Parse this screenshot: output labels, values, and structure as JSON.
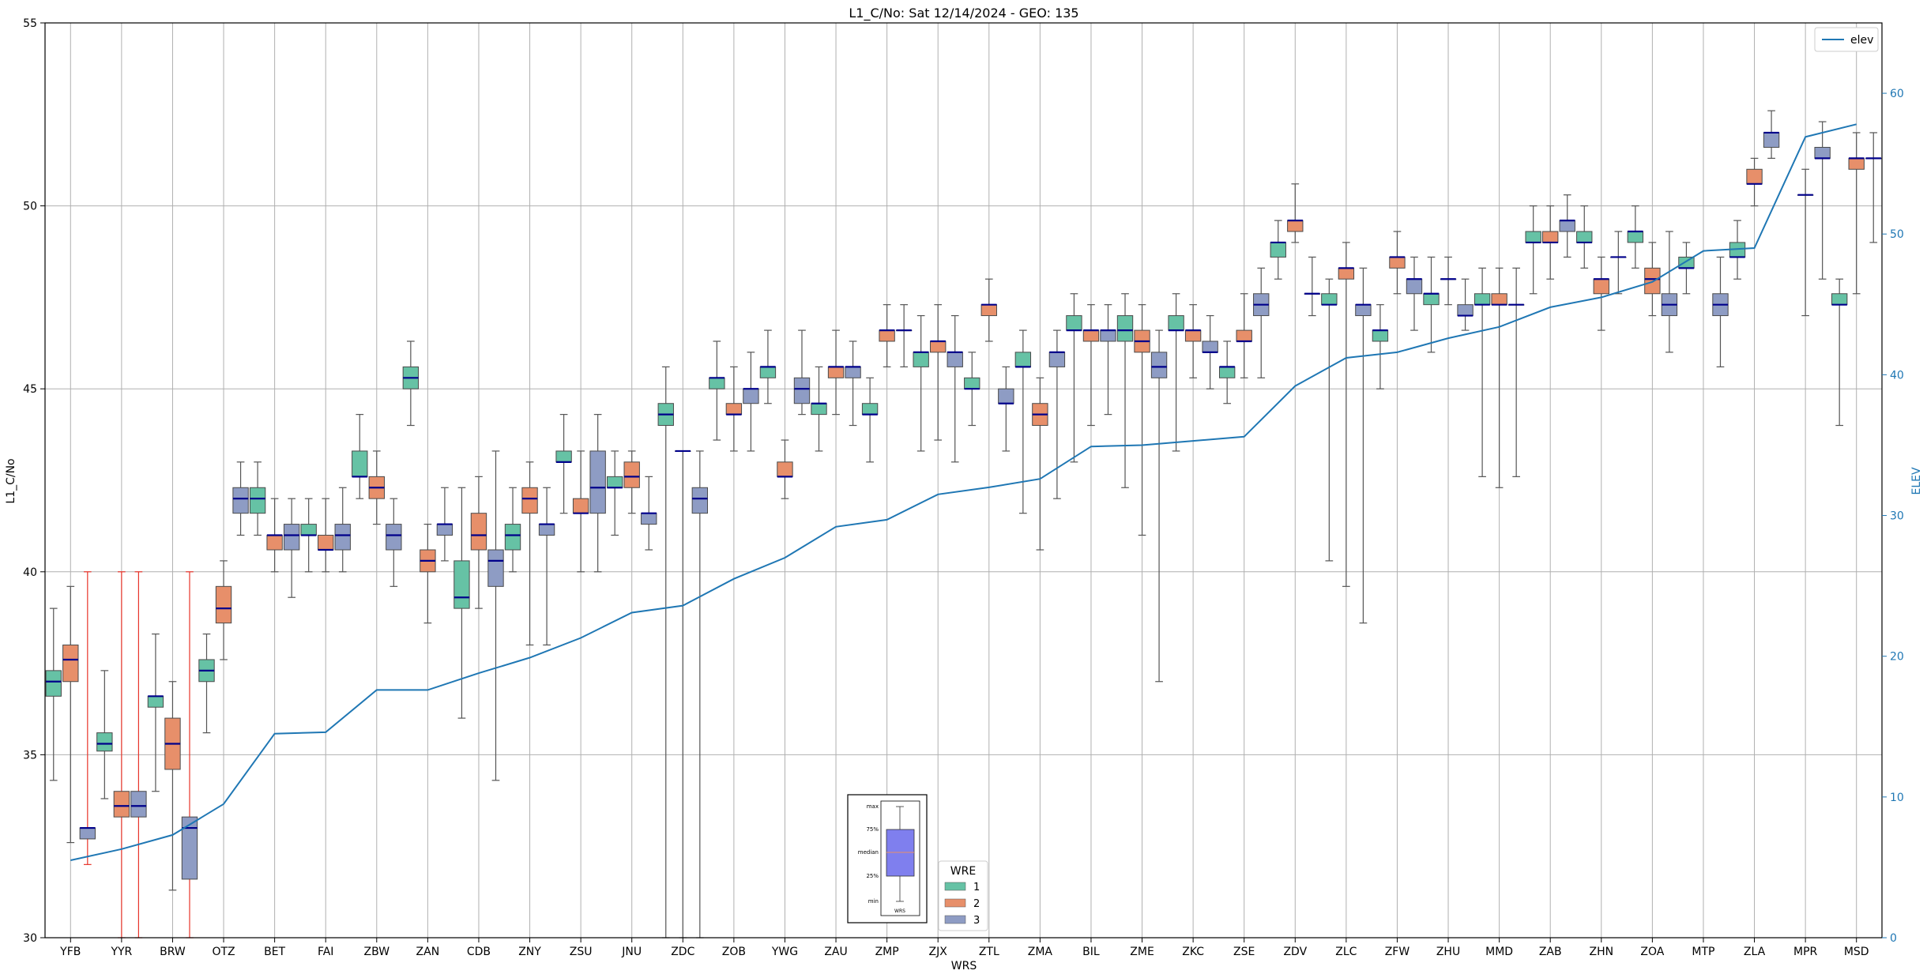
{
  "chart_data": {
    "type": "box",
    "title": "L1_C/No: Sat 12/14/2024 - GEO: 135",
    "xlabel": "WRS",
    "ylabel": "L1_C/No",
    "y2label": "ELEV",
    "ylim": [
      30,
      55
    ],
    "y2lim": [
      0,
      65
    ],
    "yticks": [
      30,
      35,
      40,
      45,
      50,
      55
    ],
    "y2ticks": [
      0,
      10,
      20,
      30,
      40,
      50,
      60
    ],
    "grid": true,
    "categories": [
      "YFB",
      "YYR",
      "BRW",
      "OTZ",
      "BET",
      "FAI",
      "ZBW",
      "ZAN",
      "CDB",
      "ZNY",
      "ZSU",
      "JNU",
      "ZDC",
      "ZOB",
      "YWG",
      "ZAU",
      "ZMP",
      "ZJX",
      "ZTL",
      "ZMA",
      "BIL",
      "ZME",
      "ZKC",
      "ZSE",
      "ZDV",
      "ZLC",
      "ZFW",
      "ZHU",
      "MMD",
      "ZAB",
      "ZHN",
      "ZOA",
      "MTP",
      "ZLA",
      "MPR",
      "MSD"
    ],
    "wre_legend": {
      "title": "WRE",
      "entries": [
        {
          "label": "1",
          "color": "#66c2a5"
        },
        {
          "label": "2",
          "color": "#e78f6a"
        },
        {
          "label": "3",
          "color": "#8e9cc4"
        }
      ]
    },
    "line_legend": {
      "label": "elev",
      "color": "#1f77b4"
    },
    "elev": [
      5.5,
      6.3,
      7.3,
      9.5,
      14.5,
      14.6,
      17.6,
      17.6,
      18.8,
      19.9,
      21.3,
      23.1,
      23.6,
      25.5,
      27,
      29.2,
      29.7,
      31.5,
      32,
      32.6,
      34.9,
      35,
      35.3,
      35.6,
      39.2,
      41.2,
      41.6,
      42.6,
      43.4,
      44.8,
      45.5,
      46.6,
      48.8,
      49,
      56.9,
      57.8
    ],
    "boxes": [
      {
        "station": "YFB",
        "wre": 1,
        "min": 34.3,
        "q1": 36.6,
        "med": 37,
        "q3": 37.3,
        "max": 39
      },
      {
        "station": "YFB",
        "wre": 2,
        "min": 32.6,
        "q1": 37,
        "med": 37.6,
        "q3": 38,
        "max": 39.6
      },
      {
        "station": "YFB",
        "wre": 3,
        "min": 32,
        "q1": 32.7,
        "med": 33,
        "q3": 33,
        "max": 40,
        "red": true
      },
      {
        "station": "YYR",
        "wre": 1,
        "min": 33.8,
        "q1": 35.1,
        "med": 35.3,
        "q3": 35.6,
        "max": 37.3
      },
      {
        "station": "YYR",
        "wre": 2,
        "min": 30,
        "q1": 33.3,
        "med": 33.6,
        "q3": 34,
        "max": 40,
        "red": true
      },
      {
        "station": "YYR",
        "wre": 3,
        "min": 30,
        "q1": 33.3,
        "med": 33.6,
        "q3": 34,
        "max": 40,
        "red": true
      },
      {
        "station": "BRW",
        "wre": 1,
        "min": 34,
        "q1": 36.3,
        "med": 36.6,
        "q3": 36.6,
        "max": 38.3
      },
      {
        "station": "BRW",
        "wre": 2,
        "min": 31.3,
        "q1": 34.6,
        "med": 35.3,
        "q3": 36,
        "max": 37
      },
      {
        "station": "BRW",
        "wre": 3,
        "min": 30,
        "q1": 31.6,
        "med": 33,
        "q3": 33.3,
        "max": 40,
        "red": true
      },
      {
        "station": "OTZ",
        "wre": 1,
        "min": 35.6,
        "q1": 37,
        "med": 37.3,
        "q3": 37.6,
        "max": 38.3
      },
      {
        "station": "OTZ",
        "wre": 2,
        "min": 37.6,
        "q1": 38.6,
        "med": 39,
        "q3": 39.6,
        "max": 40.3
      },
      {
        "station": "OTZ",
        "wre": 3,
        "min": 41,
        "q1": 41.6,
        "med": 42,
        "q3": 42.3,
        "max": 43
      },
      {
        "station": "BET",
        "wre": 1,
        "min": 41,
        "q1": 41.6,
        "med": 42,
        "q3": 42.3,
        "max": 43
      },
      {
        "station": "BET",
        "wre": 2,
        "min": 40,
        "q1": 40.6,
        "med": 41,
        "q3": 41,
        "max": 42
      },
      {
        "station": "BET",
        "wre": 3,
        "min": 39.3,
        "q1": 40.6,
        "med": 41,
        "q3": 41.3,
        "max": 42
      },
      {
        "station": "FAI",
        "wre": 1,
        "min": 40,
        "q1": 41,
        "med": 41,
        "q3": 41.3,
        "max": 42
      },
      {
        "station": "FAI",
        "wre": 2,
        "min": 40,
        "q1": 40.6,
        "med": 40.6,
        "q3": 41,
        "max": 42
      },
      {
        "station": "FAI",
        "wre": 3,
        "min": 40,
        "q1": 40.6,
        "med": 41,
        "q3": 41.3,
        "max": 42.3
      },
      {
        "station": "ZBW",
        "wre": 1,
        "min": 42,
        "q1": 42.6,
        "med": 42.6,
        "q3": 43.3,
        "max": 44.3
      },
      {
        "station": "ZBW",
        "wre": 2,
        "min": 41.3,
        "q1": 42,
        "med": 42.3,
        "q3": 42.6,
        "max": 43.3
      },
      {
        "station": "ZBW",
        "wre": 3,
        "min": 39.6,
        "q1": 40.6,
        "med": 41,
        "q3": 41.3,
        "max": 42
      },
      {
        "station": "ZAN",
        "wre": 1,
        "min": 44,
        "q1": 45,
        "med": 45.3,
        "q3": 45.6,
        "max": 46.3
      },
      {
        "station": "ZAN",
        "wre": 2,
        "min": 38.6,
        "q1": 40,
        "med": 40.3,
        "q3": 40.6,
        "max": 41.3
      },
      {
        "station": "ZAN",
        "wre": 3,
        "min": 40.3,
        "q1": 41,
        "med": 41.3,
        "q3": 41.3,
        "max": 42.3
      },
      {
        "station": "CDB",
        "wre": 1,
        "min": 36,
        "q1": 39,
        "med": 39.3,
        "q3": 40.3,
        "max": 42.3
      },
      {
        "station": "CDB",
        "wre": 2,
        "min": 39,
        "q1": 40.6,
        "med": 41,
        "q3": 41.6,
        "max": 42.6
      },
      {
        "station": "CDB",
        "wre": 3,
        "min": 34.3,
        "q1": 39.6,
        "med": 40.3,
        "q3": 40.6,
        "max": 43.3
      },
      {
        "station": "ZNY",
        "wre": 1,
        "min": 40,
        "q1": 40.6,
        "med": 41,
        "q3": 41.3,
        "max": 42.3
      },
      {
        "station": "ZNY",
        "wre": 2,
        "min": 38,
        "q1": 41.6,
        "med": 42,
        "q3": 42.3,
        "max": 43
      },
      {
        "station": "ZNY",
        "wre": 3,
        "min": 38,
        "q1": 41,
        "med": 41.3,
        "q3": 41.3,
        "max": 42.3
      },
      {
        "station": "ZSU",
        "wre": 1,
        "min": 41.6,
        "q1": 43,
        "med": 43,
        "q3": 43.3,
        "max": 44.3
      },
      {
        "station": "ZSU",
        "wre": 2,
        "min": 40,
        "q1": 41.6,
        "med": 41.6,
        "q3": 42,
        "max": 43.3
      },
      {
        "station": "ZSU",
        "wre": 3,
        "min": 40,
        "q1": 41.6,
        "med": 42.3,
        "q3": 43.3,
        "max": 44.3
      },
      {
        "station": "JNU",
        "wre": 1,
        "min": 41,
        "q1": 42.3,
        "med": 42.3,
        "q3": 42.6,
        "max": 43.3
      },
      {
        "station": "JNU",
        "wre": 2,
        "min": 41.6,
        "q1": 42.3,
        "med": 42.6,
        "q3": 43,
        "max": 43.3
      },
      {
        "station": "JNU",
        "wre": 3,
        "min": 40.6,
        "q1": 41.3,
        "med": 41.6,
        "q3": 41.6,
        "max": 42.6
      },
      {
        "station": "ZDC",
        "wre": 1,
        "min": 30,
        "q1": 44,
        "med": 44.3,
        "q3": 44.6,
        "max": 45.6
      },
      {
        "station": "ZDC",
        "wre": 2,
        "min": 30,
        "q1": 43.3,
        "med": 43.3,
        "q3": 43.3,
        "max": 43.3
      },
      {
        "station": "ZDC",
        "wre": 3,
        "min": 30,
        "q1": 41.6,
        "med": 42,
        "q3": 42.3,
        "max": 43.3
      },
      {
        "station": "ZOB",
        "wre": 1,
        "min": 43.6,
        "q1": 45,
        "med": 45.3,
        "q3": 45.3,
        "max": 46.3
      },
      {
        "station": "ZOB",
        "wre": 2,
        "min": 43.3,
        "q1": 44.3,
        "med": 44.3,
        "q3": 44.6,
        "max": 45.6
      },
      {
        "station": "ZOB",
        "wre": 3,
        "min": 43.3,
        "q1": 44.6,
        "med": 45,
        "q3": 45,
        "max": 46
      },
      {
        "station": "YWG",
        "wre": 1,
        "min": 44.6,
        "q1": 45.3,
        "med": 45.6,
        "q3": 45.6,
        "max": 46.6
      },
      {
        "station": "YWG",
        "wre": 2,
        "min": 42,
        "q1": 42.6,
        "med": 42.6,
        "q3": 43,
        "max": 43.6
      },
      {
        "station": "YWG",
        "wre": 3,
        "min": 44.3,
        "q1": 44.6,
        "med": 45,
        "q3": 45.3,
        "max": 46.6
      },
      {
        "station": "ZAU",
        "wre": 1,
        "min": 43.3,
        "q1": 44.3,
        "med": 44.6,
        "q3": 44.6,
        "max": 45.6
      },
      {
        "station": "ZAU",
        "wre": 2,
        "min": 44.3,
        "q1": 45.3,
        "med": 45.6,
        "q3": 45.6,
        "max": 46.6
      },
      {
        "station": "ZAU",
        "wre": 3,
        "min": 44,
        "q1": 45.3,
        "med": 45.6,
        "q3": 45.6,
        "max": 46.3
      },
      {
        "station": "ZMP",
        "wre": 1,
        "min": 43,
        "q1": 44.3,
        "med": 44.3,
        "q3": 44.6,
        "max": 45.3
      },
      {
        "station": "ZMP",
        "wre": 2,
        "min": 45.6,
        "q1": 46.3,
        "med": 46.6,
        "q3": 46.6,
        "max": 47.3
      },
      {
        "station": "ZMP",
        "wre": 3,
        "min": 45.6,
        "q1": 46.6,
        "med": 46.6,
        "q3": 46.6,
        "max": 47.3
      },
      {
        "station": "ZJX",
        "wre": 1,
        "min": 43.3,
        "q1": 45.6,
        "med": 46,
        "q3": 46,
        "max": 47
      },
      {
        "station": "ZJX",
        "wre": 2,
        "min": 43.6,
        "q1": 46,
        "med": 46.3,
        "q3": 46.3,
        "max": 47.3
      },
      {
        "station": "ZJX",
        "wre": 3,
        "min": 43,
        "q1": 45.6,
        "med": 46,
        "q3": 46,
        "max": 47
      },
      {
        "station": "ZTL",
        "wre": 1,
        "min": 44,
        "q1": 45,
        "med": 45,
        "q3": 45.3,
        "max": 46
      },
      {
        "station": "ZTL",
        "wre": 2,
        "min": 46.3,
        "q1": 47,
        "med": 47.3,
        "q3": 47.3,
        "max": 48
      },
      {
        "station": "ZTL",
        "wre": 3,
        "min": 43.3,
        "q1": 44.6,
        "med": 44.6,
        "q3": 45,
        "max": 45.6
      },
      {
        "station": "ZMA",
        "wre": 1,
        "min": 41.6,
        "q1": 45.6,
        "med": 45.6,
        "q3": 46,
        "max": 46.6
      },
      {
        "station": "ZMA",
        "wre": 2,
        "min": 40.6,
        "q1": 44,
        "med": 44.3,
        "q3": 44.6,
        "max": 45.3
      },
      {
        "station": "ZMA",
        "wre": 3,
        "min": 42,
        "q1": 45.6,
        "med": 46,
        "q3": 46,
        "max": 46.6
      },
      {
        "station": "BIL",
        "wre": 1,
        "min": 43,
        "q1": 46.6,
        "med": 46.6,
        "q3": 47,
        "max": 47.6
      },
      {
        "station": "BIL",
        "wre": 2,
        "min": 44,
        "q1": 46.3,
        "med": 46.6,
        "q3": 46.6,
        "max": 47.3
      },
      {
        "station": "BIL",
        "wre": 3,
        "min": 44.3,
        "q1": 46.3,
        "med": 46.6,
        "q3": 46.6,
        "max": 47.3
      },
      {
        "station": "ZME",
        "wre": 1,
        "min": 42.3,
        "q1": 46.3,
        "med": 46.6,
        "q3": 47,
        "max": 47.6
      },
      {
        "station": "ZME",
        "wre": 2,
        "min": 41,
        "q1": 46,
        "med": 46.3,
        "q3": 46.6,
        "max": 47.3
      },
      {
        "station": "ZME",
        "wre": 3,
        "min": 37,
        "q1": 45.3,
        "med": 45.6,
        "q3": 46,
        "max": 46.6
      },
      {
        "station": "ZKC",
        "wre": 1,
        "min": 43.3,
        "q1": 46.6,
        "med": 46.6,
        "q3": 47,
        "max": 47.6
      },
      {
        "station": "ZKC",
        "wre": 2,
        "min": 45.3,
        "q1": 46.3,
        "med": 46.6,
        "q3": 46.6,
        "max": 47.3
      },
      {
        "station": "ZKC",
        "wre": 3,
        "min": 45,
        "q1": 46,
        "med": 46,
        "q3": 46.3,
        "max": 47
      },
      {
        "station": "ZSE",
        "wre": 1,
        "min": 44.6,
        "q1": 45.3,
        "med": 45.6,
        "q3": 45.6,
        "max": 46.3
      },
      {
        "station": "ZSE",
        "wre": 2,
        "min": 45.3,
        "q1": 46.3,
        "med": 46.3,
        "q3": 46.6,
        "max": 47.6
      },
      {
        "station": "ZSE",
        "wre": 3,
        "min": 45.3,
        "q1": 47,
        "med": 47.3,
        "q3": 47.6,
        "max": 48.3
      },
      {
        "station": "ZDV",
        "wre": 1,
        "min": 48,
        "q1": 48.6,
        "med": 49,
        "q3": 49,
        "max": 49.6
      },
      {
        "station": "ZDV",
        "wre": 2,
        "min": 49,
        "q1": 49.3,
        "med": 49.6,
        "q3": 49.6,
        "max": 50.6
      },
      {
        "station": "ZDV",
        "wre": 3,
        "min": 47,
        "q1": 47.6,
        "med": 47.6,
        "q3": 47.6,
        "max": 48.6
      },
      {
        "station": "ZLC",
        "wre": 1,
        "min": 40.3,
        "q1": 47.3,
        "med": 47.3,
        "q3": 47.6,
        "max": 48
      },
      {
        "station": "ZLC",
        "wre": 2,
        "min": 39.6,
        "q1": 48,
        "med": 48.3,
        "q3": 48.3,
        "max": 49
      },
      {
        "station": "ZLC",
        "wre": 3,
        "min": 38.6,
        "q1": 47,
        "med": 47.3,
        "q3": 47.3,
        "max": 48.3
      },
      {
        "station": "ZFW",
        "wre": 1,
        "min": 45,
        "q1": 46.3,
        "med": 46.6,
        "q3": 46.6,
        "max": 47.3
      },
      {
        "station": "ZFW",
        "wre": 2,
        "min": 47.6,
        "q1": 48.3,
        "med": 48.6,
        "q3": 48.6,
        "max": 49.3
      },
      {
        "station": "ZFW",
        "wre": 3,
        "min": 46.6,
        "q1": 47.6,
        "med": 48,
        "q3": 48,
        "max": 48.6
      },
      {
        "station": "ZHU",
        "wre": 1,
        "min": 46,
        "q1": 47.3,
        "med": 47.6,
        "q3": 47.6,
        "max": 48.6
      },
      {
        "station": "ZHU",
        "wre": 2,
        "min": 47.3,
        "q1": 48,
        "med": 48,
        "q3": 48,
        "max": 48.6
      },
      {
        "station": "ZHU",
        "wre": 3,
        "min": 46.6,
        "q1": 47,
        "med": 47,
        "q3": 47.3,
        "max": 48
      },
      {
        "station": "MMD",
        "wre": 1,
        "min": 42.6,
        "q1": 47.3,
        "med": 47.3,
        "q3": 47.6,
        "max": 48.3
      },
      {
        "station": "MMD",
        "wre": 2,
        "min": 42.3,
        "q1": 47.3,
        "med": 47.3,
        "q3": 47.6,
        "max": 48.3
      },
      {
        "station": "MMD",
        "wre": 3,
        "min": 42.6,
        "q1": 47.3,
        "med": 47.3,
        "q3": 47.3,
        "max": 48.3
      },
      {
        "station": "ZAB",
        "wre": 1,
        "min": 47.6,
        "q1": 49,
        "med": 49,
        "q3": 49.3,
        "max": 50
      },
      {
        "station": "ZAB",
        "wre": 2,
        "min": 48,
        "q1": 49,
        "med": 49,
        "q3": 49.3,
        "max": 50
      },
      {
        "station": "ZAB",
        "wre": 3,
        "min": 48.6,
        "q1": 49.3,
        "med": 49.6,
        "q3": 49.6,
        "max": 50.3
      },
      {
        "station": "ZHN",
        "wre": 1,
        "min": 48.3,
        "q1": 49,
        "med": 49,
        "q3": 49.3,
        "max": 50
      },
      {
        "station": "ZHN",
        "wre": 2,
        "min": 46.6,
        "q1": 47.6,
        "med": 48,
        "q3": 48,
        "max": 48.6
      },
      {
        "station": "ZHN",
        "wre": 3,
        "min": 47.6,
        "q1": 48.6,
        "med": 48.6,
        "q3": 48.6,
        "max": 49.3
      },
      {
        "station": "ZOA",
        "wre": 1,
        "min": 48.3,
        "q1": 49,
        "med": 49.3,
        "q3": 49.3,
        "max": 50
      },
      {
        "station": "ZOA",
        "wre": 2,
        "min": 47,
        "q1": 47.6,
        "med": 48,
        "q3": 48.3,
        "max": 49
      },
      {
        "station": "ZOA",
        "wre": 3,
        "min": 46,
        "q1": 47,
        "med": 47.3,
        "q3": 47.6,
        "max": 49.3
      },
      {
        "station": "MTP",
        "wre": 1,
        "min": 47.6,
        "q1": 48.3,
        "med": 48.3,
        "q3": 48.6,
        "max": 49
      },
      {
        "station": "MTP",
        "wre": 3,
        "min": 45.6,
        "q1": 47,
        "med": 47.3,
        "q3": 47.6,
        "max": 48.6
      },
      {
        "station": "ZLA",
        "wre": 1,
        "min": 48,
        "q1": 48.6,
        "med": 48.6,
        "q3": 49,
        "max": 49.6
      },
      {
        "station": "ZLA",
        "wre": 2,
        "min": 50,
        "q1": 50.6,
        "med": 50.6,
        "q3": 51,
        "max": 51.3
      },
      {
        "station": "ZLA",
        "wre": 3,
        "min": 51.3,
        "q1": 51.6,
        "med": 52,
        "q3": 52,
        "max": 52.6
      },
      {
        "station": "MPR",
        "wre": 2,
        "min": 47,
        "q1": 50.3,
        "med": 50.3,
        "q3": 50.3,
        "max": 51
      },
      {
        "station": "MPR",
        "wre": 3,
        "min": 48,
        "q1": 51.3,
        "med": 51.3,
        "q3": 51.6,
        "max": 52.3
      },
      {
        "station": "MSD",
        "wre": 1,
        "min": 44,
        "q1": 47.3,
        "med": 47.3,
        "q3": 47.6,
        "max": 48
      },
      {
        "station": "MSD",
        "wre": 2,
        "min": 47.6,
        "q1": 51,
        "med": 51.3,
        "q3": 51.3,
        "max": 52
      },
      {
        "station": "MSD",
        "wre": 3,
        "min": 49,
        "q1": 51.3,
        "med": 51.3,
        "q3": 51.3,
        "max": 52
      }
    ],
    "inset_key": {
      "labels": [
        "max",
        "75%",
        "median",
        "25%",
        "min"
      ],
      "xlabel": "WRS",
      "box_color": "#7f7fee"
    }
  }
}
